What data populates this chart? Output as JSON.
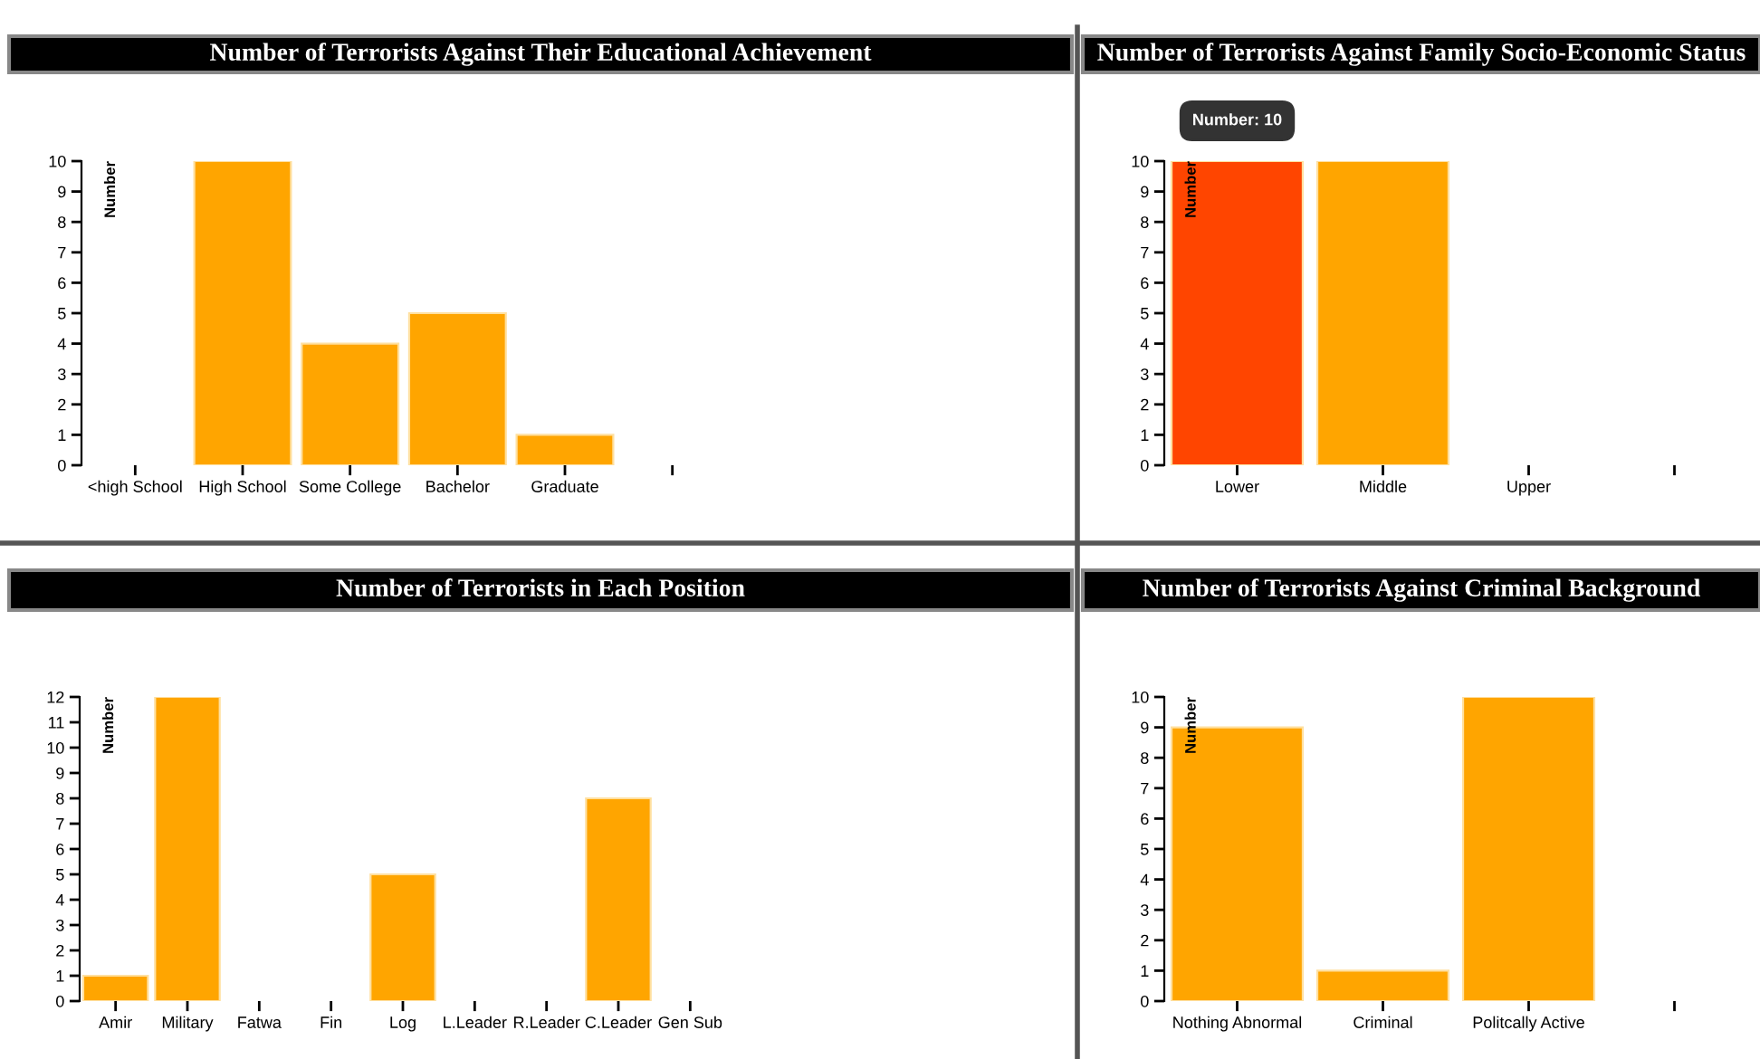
{
  "chart_data": [
    {
      "type": "bar",
      "title": "Number of Terrorists Against Their Educational Achievement",
      "ylabel": "Number",
      "categories": [
        "<high School",
        "High School",
        "Some College",
        "Bachelor",
        "Graduate",
        null
      ],
      "values": [
        0,
        10,
        4,
        5,
        1,
        null
      ],
      "colors": [
        "#ffa500",
        "#ffa500",
        "#ffa500",
        "#ffa500",
        "#ffa500",
        "#ffa500"
      ],
      "ylim": [
        0,
        10
      ],
      "yticks": [
        0,
        1,
        2,
        3,
        4,
        5,
        6,
        7,
        8,
        9,
        10
      ]
    },
    {
      "type": "bar",
      "title": "Number of Terrorists Against Family Socio-Economic Status",
      "ylabel": "Number",
      "categories": [
        "Lower",
        "Middle",
        "Upper",
        null
      ],
      "values": [
        10,
        10,
        0,
        null
      ],
      "colors": [
        "#ff4500",
        "#ffa500",
        "#ffa500",
        "#ffa500"
      ],
      "ylim": [
        0,
        10
      ],
      "yticks": [
        0,
        1,
        2,
        3,
        4,
        5,
        6,
        7,
        8,
        9,
        10
      ],
      "annotations": [
        {
          "text": "Number: 10",
          "x": "Lower",
          "y": 10
        }
      ]
    },
    {
      "type": "bar",
      "title": "Number of Terrorists in Each Position",
      "ylabel": "Number",
      "categories": [
        "Amir",
        "Military",
        "Fatwa",
        "Fin",
        "Log",
        "L.Leader",
        "R.Leader",
        "C.Leader",
        "Gen Sub"
      ],
      "values": [
        1,
        12,
        0,
        0,
        5,
        0,
        0,
        8,
        0
      ],
      "colors": [
        "#ffa500",
        "#ffa500",
        "#ffa500",
        "#ffa500",
        "#ffa500",
        "#ffa500",
        "#ffa500",
        "#ffa500",
        "#ffa500"
      ],
      "ylim": [
        0,
        12
      ],
      "yticks": [
        0,
        1,
        2,
        3,
        4,
        5,
        6,
        7,
        8,
        9,
        10,
        11,
        12
      ]
    },
    {
      "type": "bar",
      "title": "Number of Terrorists Against Criminal Background",
      "ylabel": "Number",
      "categories": [
        "Nothing Abnormal",
        "Criminal",
        "Politcally Active",
        null
      ],
      "values": [
        9,
        1,
        10,
        null
      ],
      "colors": [
        "#ffa500",
        "#ffa500",
        "#ffa500",
        "#ffa500"
      ],
      "ylim": [
        0,
        10
      ],
      "yticks": [
        0,
        1,
        2,
        3,
        4,
        5,
        6,
        7,
        8,
        9,
        10
      ]
    }
  ]
}
